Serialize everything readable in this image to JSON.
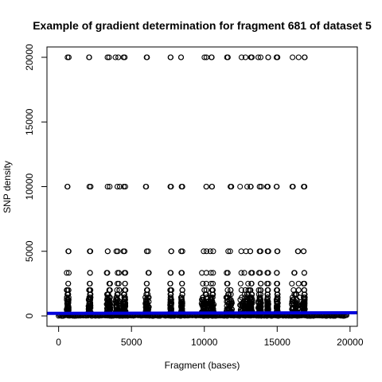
{
  "chart_data": {
    "type": "scatter",
    "title": "Example of gradient determination for fragment 681 of dataset 5",
    "xlabel": "Fragment (bases)",
    "ylabel": "SNP density",
    "xlim": [
      -800,
      20500
    ],
    "ylim": [
      -800,
      20800
    ],
    "x_ticks": [
      0,
      5000,
      10000,
      15000,
      20000
    ],
    "x_tick_labels": [
      "0",
      "5000",
      "10000",
      "15000",
      "20000"
    ],
    "y_ticks": [
      0,
      5000,
      10000,
      15000,
      20000
    ],
    "y_tick_labels": [
      "0",
      "5000",
      "10000",
      "15000",
      "20000"
    ],
    "grid": false,
    "legend": "none",
    "marker": "open-circle",
    "point_color": "#000000",
    "level_values": [
      20000,
      10000,
      5000,
      3333,
      2500,
      2000,
      1667,
      1429,
      1250,
      1111,
      1000
    ],
    "clusters": [
      {
        "x": [
          550,
          700
        ],
        "max_y": 20000
      },
      {
        "x": [
          2050,
          2200
        ],
        "max_y": 20000
      },
      {
        "x": [
          3300,
          3550
        ],
        "max_y": 20000
      },
      {
        "x": [
          3900,
          4200
        ],
        "max_y": 20000
      },
      {
        "x": [
          4450,
          4600
        ],
        "max_y": 20000
      },
      {
        "x": [
          5950,
          6200
        ],
        "max_y": 20000
      },
      {
        "x": [
          7650,
          7750
        ],
        "max_y": 20000
      },
      {
        "x": [
          8400,
          8500
        ],
        "max_y": 20000
      },
      {
        "x": [
          9800,
          10200
        ],
        "max_y": 20000
      },
      {
        "x": [
          10400,
          10650
        ],
        "max_y": 20000
      },
      {
        "x": [
          11500,
          11900
        ],
        "max_y": 20000
      },
      {
        "x": [
          12450,
          13050
        ],
        "max_y": 20000
      },
      {
        "x": [
          13100,
          13300
        ],
        "max_y": 20000
      },
      {
        "x": [
          13700,
          13900
        ],
        "max_y": 20000
      },
      {
        "x": [
          14300,
          14400
        ],
        "max_y": 20000
      },
      {
        "x": [
          14950,
          15050
        ],
        "max_y": 20000
      },
      {
        "x": [
          16000,
          16550
        ],
        "max_y": 20000
      },
      {
        "x": [
          16800,
          16900
        ],
        "max_y": 20000
      }
    ],
    "fit_line": {
      "color": "#0000dd",
      "y": [
        200,
        250
      ]
    }
  }
}
